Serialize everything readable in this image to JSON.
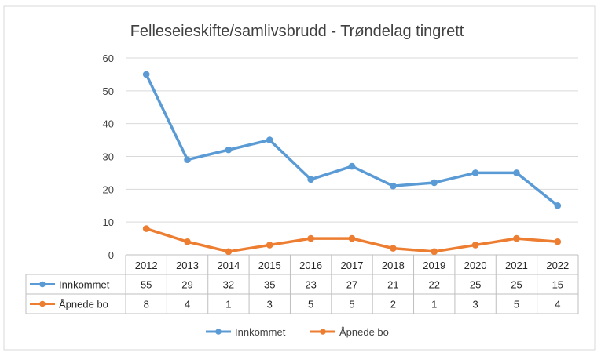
{
  "chart_data": {
    "type": "line",
    "title": "Felleseieskifte/samlivsbrudd - Trøndelag tingrett",
    "categories": [
      "2012",
      "2013",
      "2014",
      "2015",
      "2016",
      "2017",
      "2018",
      "2019",
      "2020",
      "2021",
      "2022"
    ],
    "series": [
      {
        "name": "Innkommet",
        "values": [
          55,
          29,
          32,
          35,
          23,
          27,
          21,
          22,
          25,
          25,
          15
        ],
        "color": "#5B9BD5"
      },
      {
        "name": "Åpnede bo",
        "values": [
          8,
          4,
          1,
          3,
          5,
          5,
          2,
          1,
          3,
          5,
          4
        ],
        "color": "#ED7D31"
      }
    ],
    "ylim": [
      0,
      60
    ],
    "yticks": [
      0,
      10,
      20,
      30,
      40,
      50,
      60
    ],
    "grid": true,
    "data_table": true,
    "legend": "bottom"
  },
  "colors": {
    "grid": "#D9D9D9",
    "table_border": "#BFBFBF",
    "frame": "#D9D9D9"
  }
}
